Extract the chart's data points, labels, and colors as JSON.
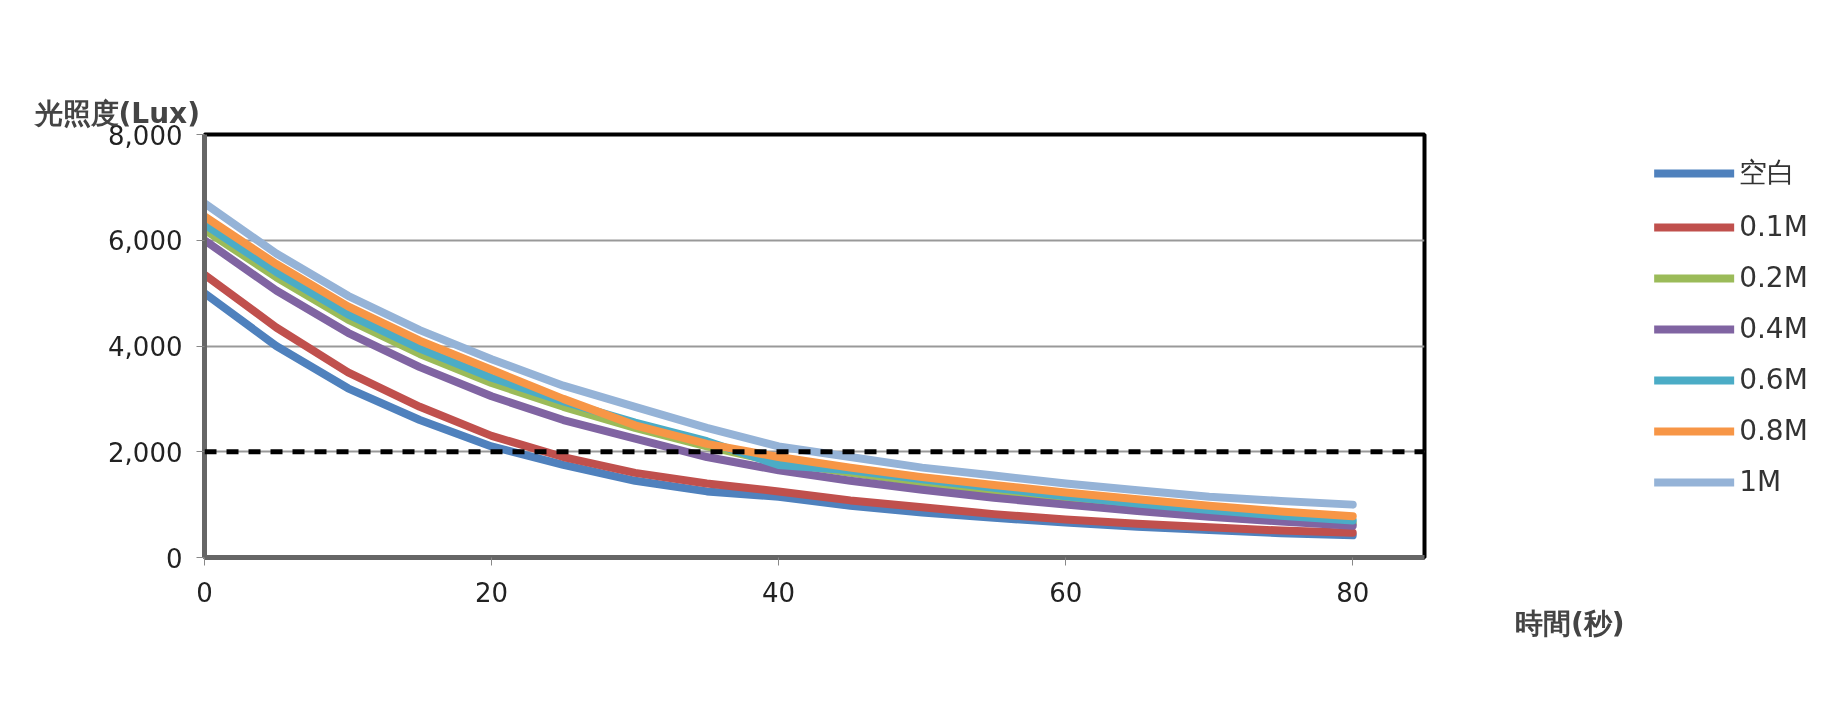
{
  "chart_data": {
    "type": "line",
    "ylabel": "光照度(Lux)",
    "xlabel": "時間(秒)",
    "x": [
      0,
      5,
      10,
      15,
      20,
      25,
      30,
      35,
      40,
      45,
      50,
      55,
      60,
      65,
      70,
      75,
      80
    ],
    "series": [
      {
        "name": "空白",
        "color": "#4f81bd",
        "values": [
          5000,
          4000,
          3200,
          2600,
          2100,
          1750,
          1450,
          1250,
          1150,
          980,
          850,
          750,
          660,
          580,
          520,
          460,
          420
        ]
      },
      {
        "name": "0.1M",
        "color": "#c0504d",
        "values": [
          5350,
          4350,
          3500,
          2850,
          2300,
          1900,
          1600,
          1400,
          1250,
          1080,
          950,
          820,
          720,
          640,
          570,
          510,
          470
        ]
      },
      {
        "name": "0.2M",
        "color": "#9bbb59",
        "values": [
          6200,
          5300,
          4500,
          3850,
          3300,
          2850,
          2450,
          2100,
          1800,
          1600,
          1420,
          1250,
          1100,
          970,
          850,
          740,
          650
        ]
      },
      {
        "name": "0.4M",
        "color": "#8064a2",
        "values": [
          6000,
          5050,
          4250,
          3600,
          3050,
          2600,
          2250,
          1900,
          1650,
          1450,
          1280,
          1130,
          1000,
          880,
          770,
          680,
          600
        ]
      },
      {
        "name": "0.6M",
        "color": "#4bacc6",
        "values": [
          6300,
          5400,
          4600,
          3950,
          3400,
          2950,
          2550,
          2200,
          1750,
          1650,
          1480,
          1320,
          1160,
          1020,
          900,
          790,
          700
        ]
      },
      {
        "name": "0.8M",
        "color": "#f79646",
        "values": [
          6450,
          5550,
          4750,
          4100,
          3550,
          3000,
          2500,
          2150,
          1900,
          1700,
          1520,
          1370,
          1230,
          1100,
          980,
          870,
          780
        ]
      },
      {
        "name": "1M",
        "color": "#95b3d7",
        "values": [
          6700,
          5750,
          4950,
          4300,
          3750,
          3250,
          2850,
          2450,
          2100,
          1900,
          1700,
          1550,
          1400,
          1270,
          1150,
          1070,
          1000
        ]
      }
    ],
    "xlim": [
      0,
      85
    ],
    "ylim": [
      0,
      8000
    ],
    "xticks": [
      0,
      20,
      40,
      60,
      80
    ],
    "yticks": [
      {
        "value": 0,
        "label": "0"
      },
      {
        "value": 2000,
        "label": "2,000"
      },
      {
        "value": 4000,
        "label": "4,000"
      },
      {
        "value": 6000,
        "label": "6,000"
      },
      {
        "value": 8000,
        "label": "8,000"
      }
    ],
    "ref_lines": [
      {
        "axis": "y",
        "value": 2000,
        "color": "#000000",
        "line_style": "dashed"
      }
    ],
    "grid": "y",
    "legend": "right",
    "marker": "none",
    "line_style": "solid"
  }
}
